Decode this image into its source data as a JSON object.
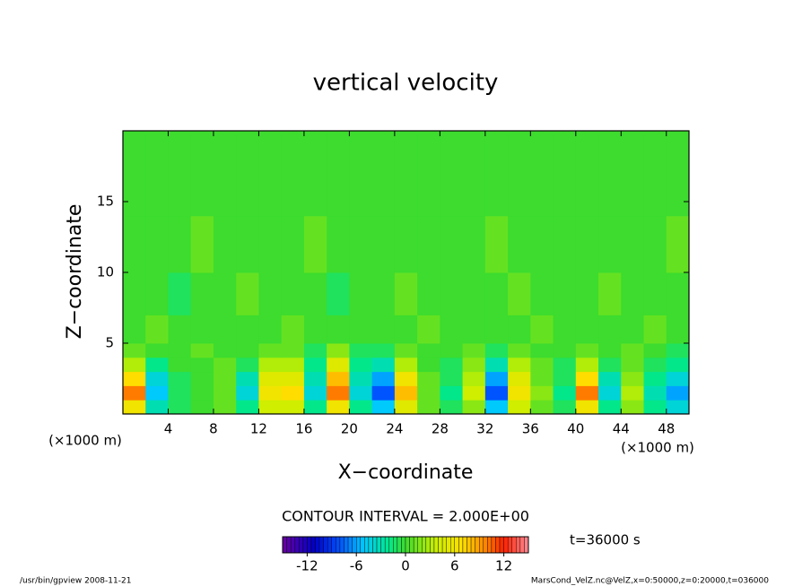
{
  "chart_data": {
    "type": "contour",
    "title": "vertical velocity",
    "xlabel": "X−coordinate",
    "ylabel": "Z−coordinate",
    "x_unit_label": "(×1000 m)",
    "contour_interval": "CONTOUR INTERVAL = 2.000E+00",
    "time_label": "t=36000 s",
    "footer_left": "/usr/bin/gpview  2008-11-21",
    "footer_right": "MarsCond_VelZ.nc@VelZ,x=0:50000,z=0:20000,t=036000",
    "xlim": [
      0,
      50
    ],
    "ylim": [
      0,
      20
    ],
    "xticks": [
      4,
      8,
      12,
      16,
      20,
      24,
      28,
      32,
      36,
      40,
      44,
      48
    ],
    "yticks": [
      5,
      10,
      15
    ],
    "xbins": [
      0,
      2,
      4,
      6,
      8,
      10,
      12,
      14,
      16,
      18,
      20,
      22,
      24,
      26,
      28,
      30,
      32,
      34,
      36,
      38,
      40,
      42,
      44,
      46,
      48,
      50
    ],
    "ybins": [
      0,
      1,
      2,
      3,
      4,
      5,
      7,
      10,
      14,
      20
    ],
    "values": [
      [
        6,
        -3,
        -1,
        0,
        1,
        -2,
        4,
        4,
        -2,
        6,
        -2,
        -5,
        5,
        1,
        -1,
        2,
        -5,
        4,
        1,
        -1,
        6,
        -2,
        2,
        -2,
        -4
      ],
      [
        10,
        -5,
        -1,
        0,
        1,
        -4,
        6,
        7,
        -4,
        10,
        -4,
        -8,
        8,
        1,
        -2,
        4,
        -8,
        6,
        2,
        -2,
        10,
        -4,
        3,
        -3,
        -6
      ],
      [
        7,
        -4,
        -1,
        0,
        1,
        -3,
        5,
        5,
        -3,
        8,
        -3,
        -6,
        6,
        1,
        -1,
        3,
        -6,
        5,
        1,
        -1,
        7,
        -3,
        2,
        -2,
        -4
      ],
      [
        3,
        -2,
        0,
        0,
        1,
        -1,
        3,
        3,
        -2,
        5,
        -2,
        -3,
        3,
        0,
        -1,
        2,
        -3,
        3,
        1,
        -1,
        3,
        -1,
        1,
        -1,
        -2
      ],
      [
        1,
        0,
        0,
        1,
        0,
        0,
        1,
        1,
        -1,
        2,
        -1,
        -1,
        1,
        0,
        0,
        1,
        -1,
        1,
        0,
        0,
        1,
        0,
        1,
        0,
        -1
      ],
      [
        0,
        1,
        0,
        0,
        0,
        0,
        0,
        1,
        0,
        0,
        0,
        0,
        0,
        1,
        0,
        0,
        0,
        0,
        1,
        0,
        0,
        0,
        0,
        1,
        0
      ],
      [
        0,
        0,
        -1,
        0,
        0,
        1,
        0,
        0,
        0,
        -1,
        0,
        0,
        1,
        0,
        0,
        0,
        0,
        1,
        0,
        0,
        0,
        1,
        0,
        0,
        0
      ],
      [
        0,
        0,
        0,
        1,
        0,
        0,
        0,
        0,
        1,
        0,
        0,
        0,
        0,
        0,
        0,
        0,
        1,
        0,
        0,
        0,
        0,
        0,
        0,
        0,
        1
      ],
      [
        0,
        0,
        0,
        0,
        0,
        0,
        0,
        0,
        0,
        0,
        0,
        0,
        0,
        0,
        0,
        0,
        0,
        0,
        0,
        0,
        0,
        0,
        0,
        0,
        0
      ]
    ],
    "clim": [
      -15,
      15
    ],
    "cticks": [
      -12,
      -6,
      0,
      6,
      12
    ]
  }
}
